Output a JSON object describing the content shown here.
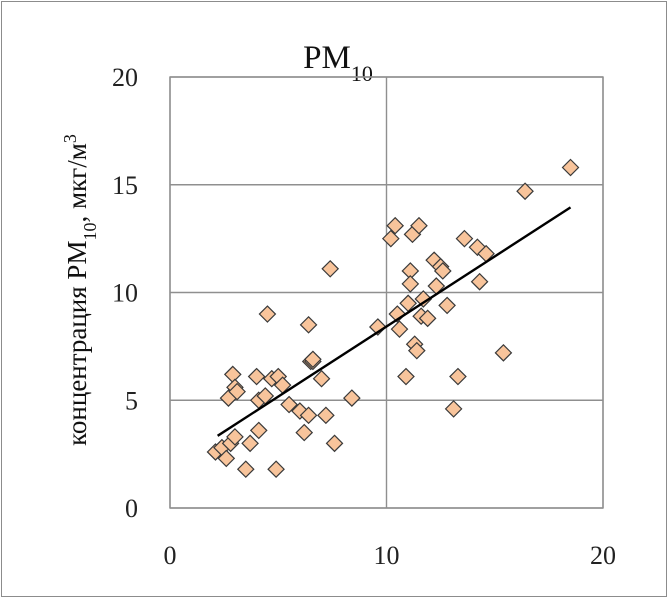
{
  "chart_data": {
    "type": "scatter",
    "title": "PM",
    "title_subscript": "10",
    "ylabel_parts": [
      {
        "text": "концентрация PM",
        "style": "normal"
      },
      {
        "text": "10",
        "style": "sub"
      },
      {
        "text": ", мкг/м",
        "style": "normal"
      },
      {
        "text": "3",
        "style": "sup"
      }
    ],
    "xlabel": "",
    "xlim": [
      0,
      20
    ],
    "ylim": [
      0,
      20
    ],
    "x_ticks": [
      0,
      10,
      20
    ],
    "y_ticks": [
      0,
      5,
      10,
      15,
      20
    ],
    "x_tick_labels": [
      "0",
      "10",
      "20"
    ],
    "y_tick_labels": [
      "0",
      "5",
      "10",
      "15",
      "20"
    ],
    "grid": true,
    "marker": "diamond",
    "marker_color": "#f8c49b",
    "marker_edge_color": "#3a3a3a",
    "trendline": {
      "x": [
        2.2,
        18.5
      ],
      "y": [
        3.35,
        13.95
      ],
      "color": "#000000"
    },
    "x": [
      2.1,
      2.4,
      2.6,
      2.7,
      2.8,
      2.9,
      3.0,
      3.0,
      3.1,
      3.5,
      3.7,
      4.0,
      4.1,
      4.1,
      4.4,
      4.5,
      4.7,
      4.9,
      5.0,
      5.2,
      5.5,
      6.0,
      6.2,
      6.4,
      6.4,
      6.5,
      6.6,
      6.6,
      7.0,
      7.2,
      7.4,
      7.6,
      8.4,
      9.6,
      10.2,
      10.4,
      10.5,
      10.6,
      10.9,
      11.0,
      11.1,
      11.1,
      11.2,
      11.3,
      11.4,
      11.5,
      11.6,
      11.7,
      11.9,
      12.2,
      12.3,
      12.5,
      12.6,
      12.8,
      13.1,
      13.3,
      13.6,
      14.2,
      14.3,
      14.6,
      15.4,
      16.4,
      18.5
    ],
    "y": [
      2.6,
      2.8,
      2.3,
      5.1,
      3.0,
      6.2,
      5.6,
      3.3,
      5.4,
      1.8,
      3.0,
      6.1,
      3.6,
      5.0,
      5.2,
      9.0,
      6.0,
      1.8,
      6.1,
      5.7,
      4.8,
      4.5,
      3.5,
      8.5,
      4.3,
      6.8,
      6.8,
      6.9,
      6.0,
      4.3,
      11.1,
      3.0,
      5.1,
      8.4,
      12.5,
      13.1,
      9.0,
      8.3,
      6.1,
      9.5,
      11.0,
      10.4,
      12.7,
      7.6,
      7.3,
      13.1,
      8.9,
      9.7,
      8.8,
      11.5,
      10.3,
      11.2,
      11.0,
      9.4,
      4.6,
      6.1,
      12.5,
      12.1,
      10.5,
      11.8,
      7.2,
      14.7,
      15.8
    ]
  }
}
